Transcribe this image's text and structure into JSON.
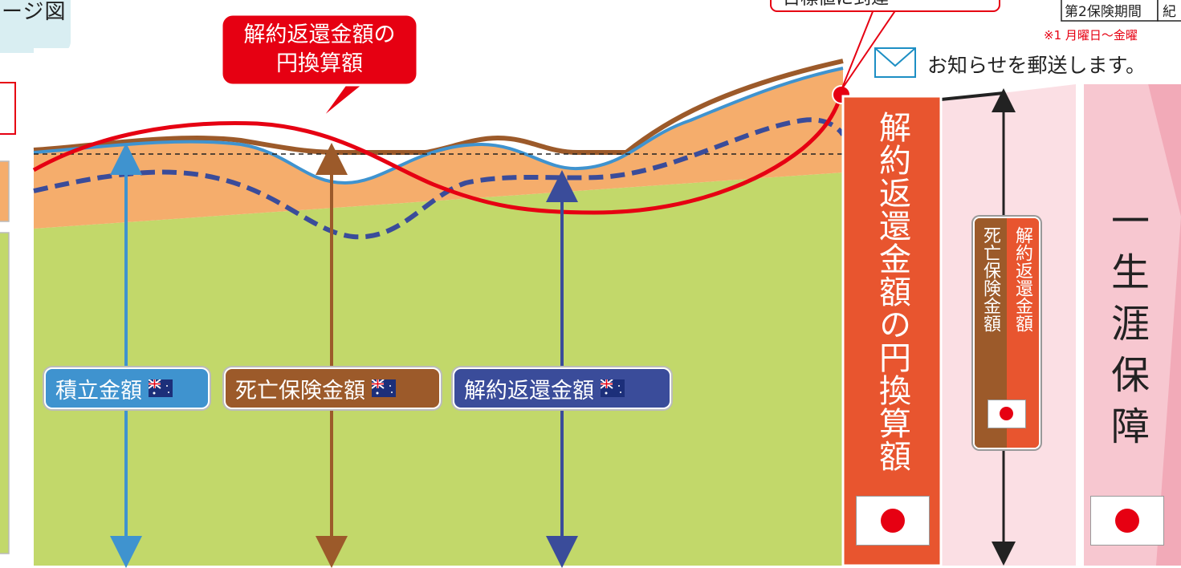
{
  "corner_title": "ージ図",
  "notice_box": {
    "text": "目標値に到達"
  },
  "period_table": {
    "cell1": "第2保険期間",
    "cell2": "紀"
  },
  "footnote": "※1 月曜日〜金曜",
  "mail_notice": "お知らせを郵送します。",
  "red_callout": {
    "line1": "解約返還金額の",
    "line2": "円換算額"
  },
  "labels": {
    "accumulated": "積立金額",
    "death_benefit": "死亡保険金額",
    "surrender": "解約返還金額"
  },
  "panels": {
    "yen_surrender": "解約返還金額の円換算額",
    "death_col": "死亡保険金額",
    "surrender_col": "解約返還金額",
    "lifetime": "一生涯保障"
  },
  "colors": {
    "green": "#c2d86a",
    "orange": "#f5ad6c",
    "brown": "#9c5a2a",
    "blue": "#3f93cf",
    "navy": "#3a4c9a",
    "red": "#e60012",
    "panel_orange": "#e8552f",
    "pink": "#f7c7d0",
    "pink_light": "#fbdfe4"
  }
}
